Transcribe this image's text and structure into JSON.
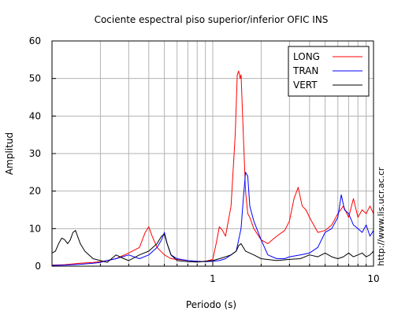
{
  "chart_data": {
    "type": "line",
    "title": "Cociente espectral piso superior/inferior  OFIC INS",
    "xlabel": "Periodo (s)",
    "ylabel": "Amplitud",
    "xscale": "log",
    "xlim": [
      0.1,
      10
    ],
    "ylim": [
      0,
      60
    ],
    "x_tick_labels": [
      "1",
      "10"
    ],
    "y_ticks": [
      0,
      10,
      20,
      30,
      40,
      50,
      60
    ],
    "grid": true,
    "legend_position": "top-right",
    "side_label": "http://www.lis.ucr.ac.cr",
    "series": [
      {
        "name": "LONG",
        "color": "#ff0000",
        "x": [
          0.1,
          0.12,
          0.15,
          0.18,
          0.2,
          0.22,
          0.25,
          0.3,
          0.35,
          0.38,
          0.4,
          0.42,
          0.45,
          0.5,
          0.55,
          0.6,
          0.7,
          0.8,
          0.9,
          1.0,
          1.05,
          1.1,
          1.15,
          1.2,
          1.3,
          1.38,
          1.42,
          1.45,
          1.48,
          1.5,
          1.55,
          1.6,
          1.65,
          1.7,
          1.8,
          2.0,
          2.2,
          2.5,
          2.8,
          3.0,
          3.2,
          3.4,
          3.6,
          3.8,
          4.0,
          4.5,
          5.0,
          5.5,
          6.0,
          6.5,
          7.0,
          7.5,
          8.0,
          8.5,
          9.0,
          9.5,
          10.0
        ],
        "values": [
          0.3,
          0.4,
          0.8,
          1.0,
          1.2,
          1.5,
          2.0,
          3.5,
          5.0,
          9.0,
          10.5,
          8.0,
          5.0,
          3.0,
          2.0,
          1.8,
          1.5,
          1.2,
          1.3,
          1.8,
          6.0,
          10.5,
          9.5,
          8.0,
          16.0,
          35.0,
          51.0,
          52.0,
          50.0,
          51.0,
          35.0,
          20.0,
          14.0,
          13.0,
          10.0,
          7.0,
          6.0,
          8.0,
          9.5,
          12.0,
          18.0,
          21.0,
          16.0,
          15.0,
          13.0,
          9.0,
          9.5,
          11.0,
          14.0,
          16.0,
          13.0,
          18.0,
          13.0,
          15.0,
          14.0,
          16.0,
          14.0
        ]
      },
      {
        "name": "TRAN",
        "color": "#0000ff",
        "x": [
          0.1,
          0.12,
          0.15,
          0.18,
          0.2,
          0.22,
          0.25,
          0.3,
          0.35,
          0.4,
          0.45,
          0.48,
          0.5,
          0.52,
          0.55,
          0.6,
          0.7,
          0.8,
          0.9,
          1.0,
          1.1,
          1.2,
          1.3,
          1.4,
          1.5,
          1.55,
          1.6,
          1.65,
          1.7,
          1.8,
          2.0,
          2.2,
          2.5,
          2.8,
          3.0,
          3.5,
          4.0,
          4.5,
          5.0,
          5.5,
          6.0,
          6.3,
          6.6,
          7.0,
          7.5,
          8.0,
          8.5,
          9.0,
          9.5,
          10.0
        ],
        "values": [
          0.2,
          0.3,
          0.5,
          0.8,
          1.0,
          1.5,
          2.0,
          3.0,
          2.0,
          3.0,
          5.0,
          7.0,
          9.0,
          6.0,
          3.0,
          2.0,
          1.5,
          1.3,
          1.2,
          1.3,
          1.5,
          2.0,
          3.0,
          4.0,
          10.0,
          18.0,
          25.0,
          24.0,
          16.0,
          12.0,
          7.0,
          3.0,
          2.0,
          2.0,
          2.5,
          3.0,
          3.5,
          5.0,
          9.0,
          10.0,
          13.0,
          19.0,
          15.0,
          14.0,
          11.0,
          10.0,
          9.0,
          11.0,
          8.0,
          9.5
        ]
      },
      {
        "name": "VERT",
        "color": "#000000",
        "x": [
          0.1,
          0.105,
          0.11,
          0.115,
          0.12,
          0.125,
          0.13,
          0.135,
          0.14,
          0.15,
          0.16,
          0.18,
          0.2,
          0.22,
          0.25,
          0.28,
          0.3,
          0.35,
          0.4,
          0.45,
          0.48,
          0.5,
          0.52,
          0.55,
          0.6,
          0.7,
          0.8,
          0.9,
          1.0,
          1.1,
          1.2,
          1.3,
          1.4,
          1.45,
          1.5,
          1.6,
          1.8,
          2.0,
          2.5,
          3.0,
          3.5,
          4.0,
          4.5,
          5.0,
          5.5,
          6.0,
          6.5,
          7.0,
          7.5,
          8.0,
          8.5,
          9.0,
          9.5,
          10.0
        ],
        "values": [
          3.5,
          4.0,
          6.0,
          7.5,
          7.0,
          6.0,
          7.0,
          9.0,
          9.5,
          6.0,
          4.0,
          2.0,
          1.5,
          1.0,
          3.0,
          2.0,
          1.5,
          3.0,
          4.0,
          6.0,
          8.0,
          8.5,
          6.0,
          3.0,
          1.5,
          1.2,
          1.1,
          1.3,
          1.5,
          2.0,
          2.5,
          3.0,
          4.0,
          5.5,
          6.0,
          4.0,
          3.0,
          2.0,
          1.5,
          1.8,
          2.0,
          3.0,
          2.5,
          3.5,
          2.5,
          2.0,
          2.5,
          3.5,
          2.5,
          3.0,
          3.5,
          2.5,
          3.0,
          4.0
        ]
      }
    ]
  }
}
